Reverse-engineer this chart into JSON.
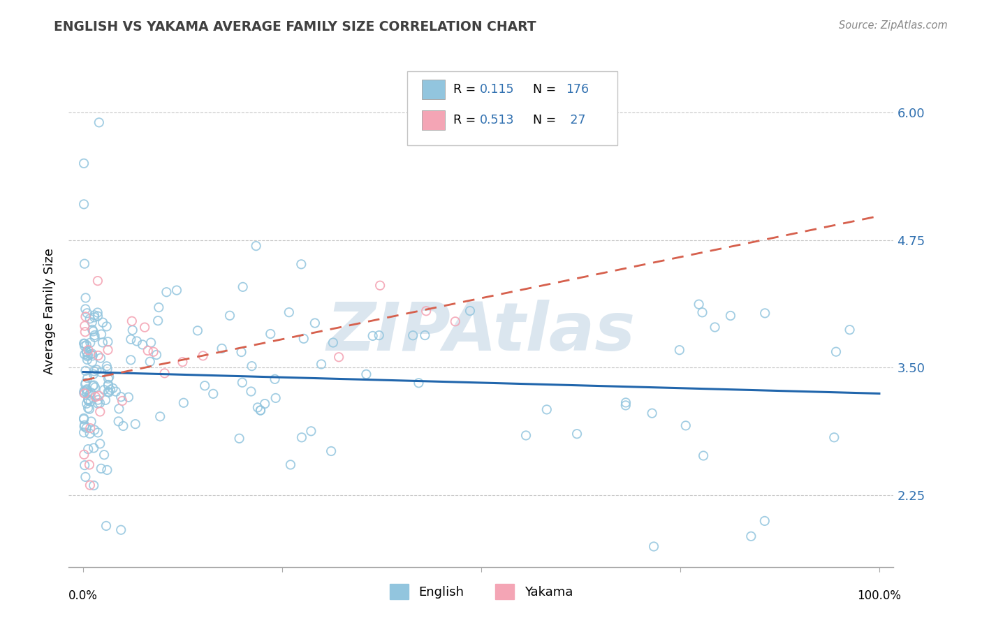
{
  "title": "ENGLISH VS YAKAMA AVERAGE FAMILY SIZE CORRELATION CHART",
  "source": "Source: ZipAtlas.com",
  "ylabel": "Average Family Size",
  "yticks": [
    2.25,
    3.5,
    4.75,
    6.0
  ],
  "xlim": [
    -0.018,
    1.018
  ],
  "ylim": [
    1.55,
    6.55
  ],
  "english_R": 0.115,
  "english_N": 176,
  "yakama_R": 0.513,
  "yakama_N": 27,
  "english_dot_color": "#92c5de",
  "yakama_dot_color": "#f4a5b5",
  "trend_english_color": "#2166ac",
  "trend_yakama_color": "#d6604d",
  "watermark_color": "#d8e4ee",
  "bg_color": "#ffffff",
  "grid_color": "#c8c8c8",
  "title_color": "#404040",
  "source_color": "#888888",
  "yaxis_tick_color": "#3070b0"
}
